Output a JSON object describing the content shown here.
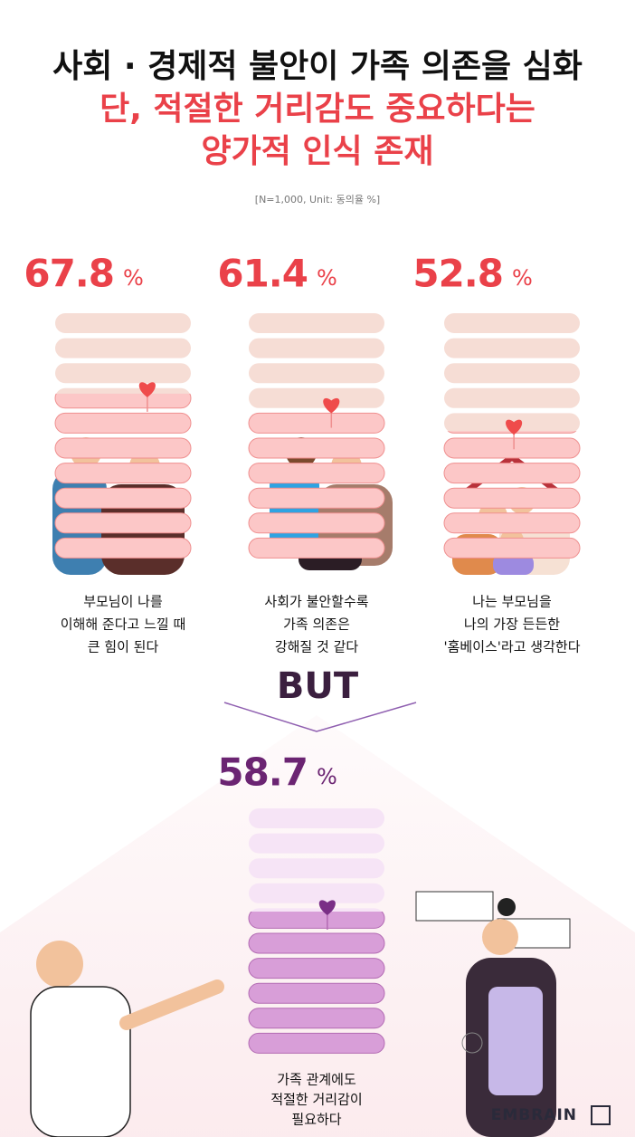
{
  "header": {
    "title_lines": [
      "사회 · 경제적 불안이 가족 의존을 심화",
      "단, 적절한 거리감도 중요하다는",
      "양가적 인식 존재"
    ],
    "note": "[N=1,000, Unit: 동의율 %]"
  },
  "items": [
    {
      "value": 67.8,
      "unit": "%",
      "caption": [
        "부모님이 나를",
        "이해해 준다고 느낄 때",
        "큰 힘이 된다"
      ]
    },
    {
      "value": 61.4,
      "unit": "%",
      "caption": [
        "사회가 불안할수록",
        "가족 의존은",
        "강해질 것 같다"
      ]
    },
    {
      "value": 52.8,
      "unit": "%",
      "caption": [
        "나는 부모님을",
        "나의 가장 든든한",
        "'홈베이스'라고 생각한다"
      ]
    }
  ],
  "divider": "BUT",
  "highlight": {
    "value": 58.7,
    "unit": "%",
    "caption": [
      "가족 관계에도",
      "적절한 거리감이",
      "필요하다"
    ]
  },
  "brand": "EMBRAIN"
}
